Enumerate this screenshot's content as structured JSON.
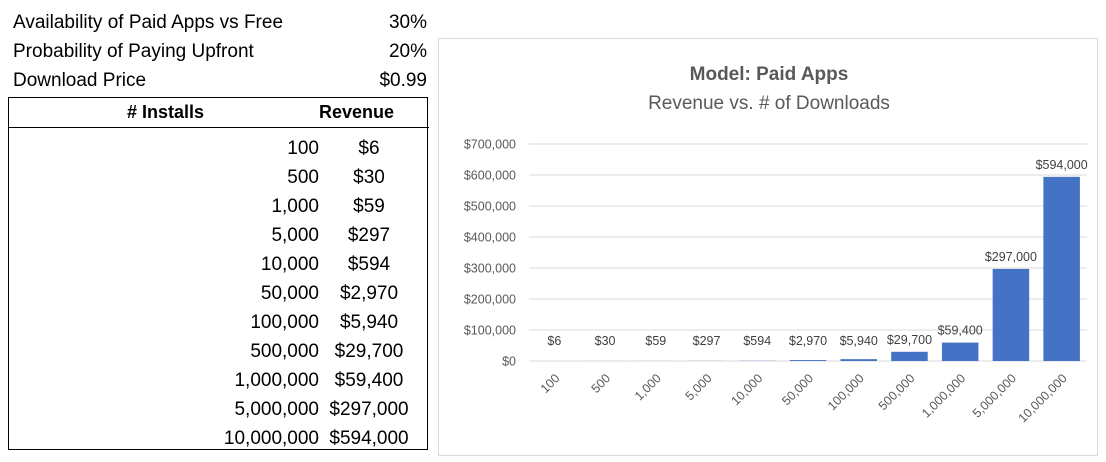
{
  "parameters": [
    {
      "label": "Availability of Paid Apps vs Free",
      "value": "30%"
    },
    {
      "label": "Probability of Paying Upfront",
      "value": "20%"
    },
    {
      "label": "Download Price",
      "value": "$0.99"
    }
  ],
  "table": {
    "headers": {
      "installs": "# Installs",
      "revenue": "Revenue"
    },
    "rows": [
      {
        "installs": "100",
        "revenue": "$6"
      },
      {
        "installs": "500",
        "revenue": "$30"
      },
      {
        "installs": "1,000",
        "revenue": "$59"
      },
      {
        "installs": "5,000",
        "revenue": "$297"
      },
      {
        "installs": "10,000",
        "revenue": "$594"
      },
      {
        "installs": "50,000",
        "revenue": "$2,970"
      },
      {
        "installs": "100,000",
        "revenue": "$5,940"
      },
      {
        "installs": "500,000",
        "revenue": "$29,700"
      },
      {
        "installs": "1,000,000",
        "revenue": "$59,400"
      },
      {
        "installs": "5,000,000",
        "revenue": "$297,000"
      },
      {
        "installs": "10,000,000",
        "revenue": "$594,000"
      }
    ]
  },
  "chart_data": {
    "type": "bar",
    "title": "Model: Paid Apps",
    "subtitle": "Revenue vs. # of Downloads",
    "xlabel": "",
    "ylabel": "",
    "categories": [
      "100",
      "500",
      "1,000",
      "5,000",
      "10,000",
      "50,000",
      "100,000",
      "500,000",
      "1,000,000",
      "5,000,000",
      "10,000,000"
    ],
    "values": [
      6,
      30,
      59,
      297,
      594,
      2970,
      5940,
      29700,
      59400,
      297000,
      594000
    ],
    "data_labels": [
      "$6",
      "$30",
      "$59",
      "$297",
      "$594",
      "$2,970",
      "$5,940",
      "$29,700",
      "$59,400",
      "$297,000",
      "$594,000"
    ],
    "yticks": [
      0,
      100000,
      200000,
      300000,
      400000,
      500000,
      600000,
      700000
    ],
    "ytick_labels": [
      "$0",
      "$100,000",
      "$200,000",
      "$300,000",
      "$400,000",
      "$500,000",
      "$600,000",
      "$700,000"
    ],
    "ylim": [
      0,
      700000
    ],
    "grid": true,
    "legend": "none",
    "bar_color": "#4472c4",
    "grid_color": "#d9d9d9"
  }
}
